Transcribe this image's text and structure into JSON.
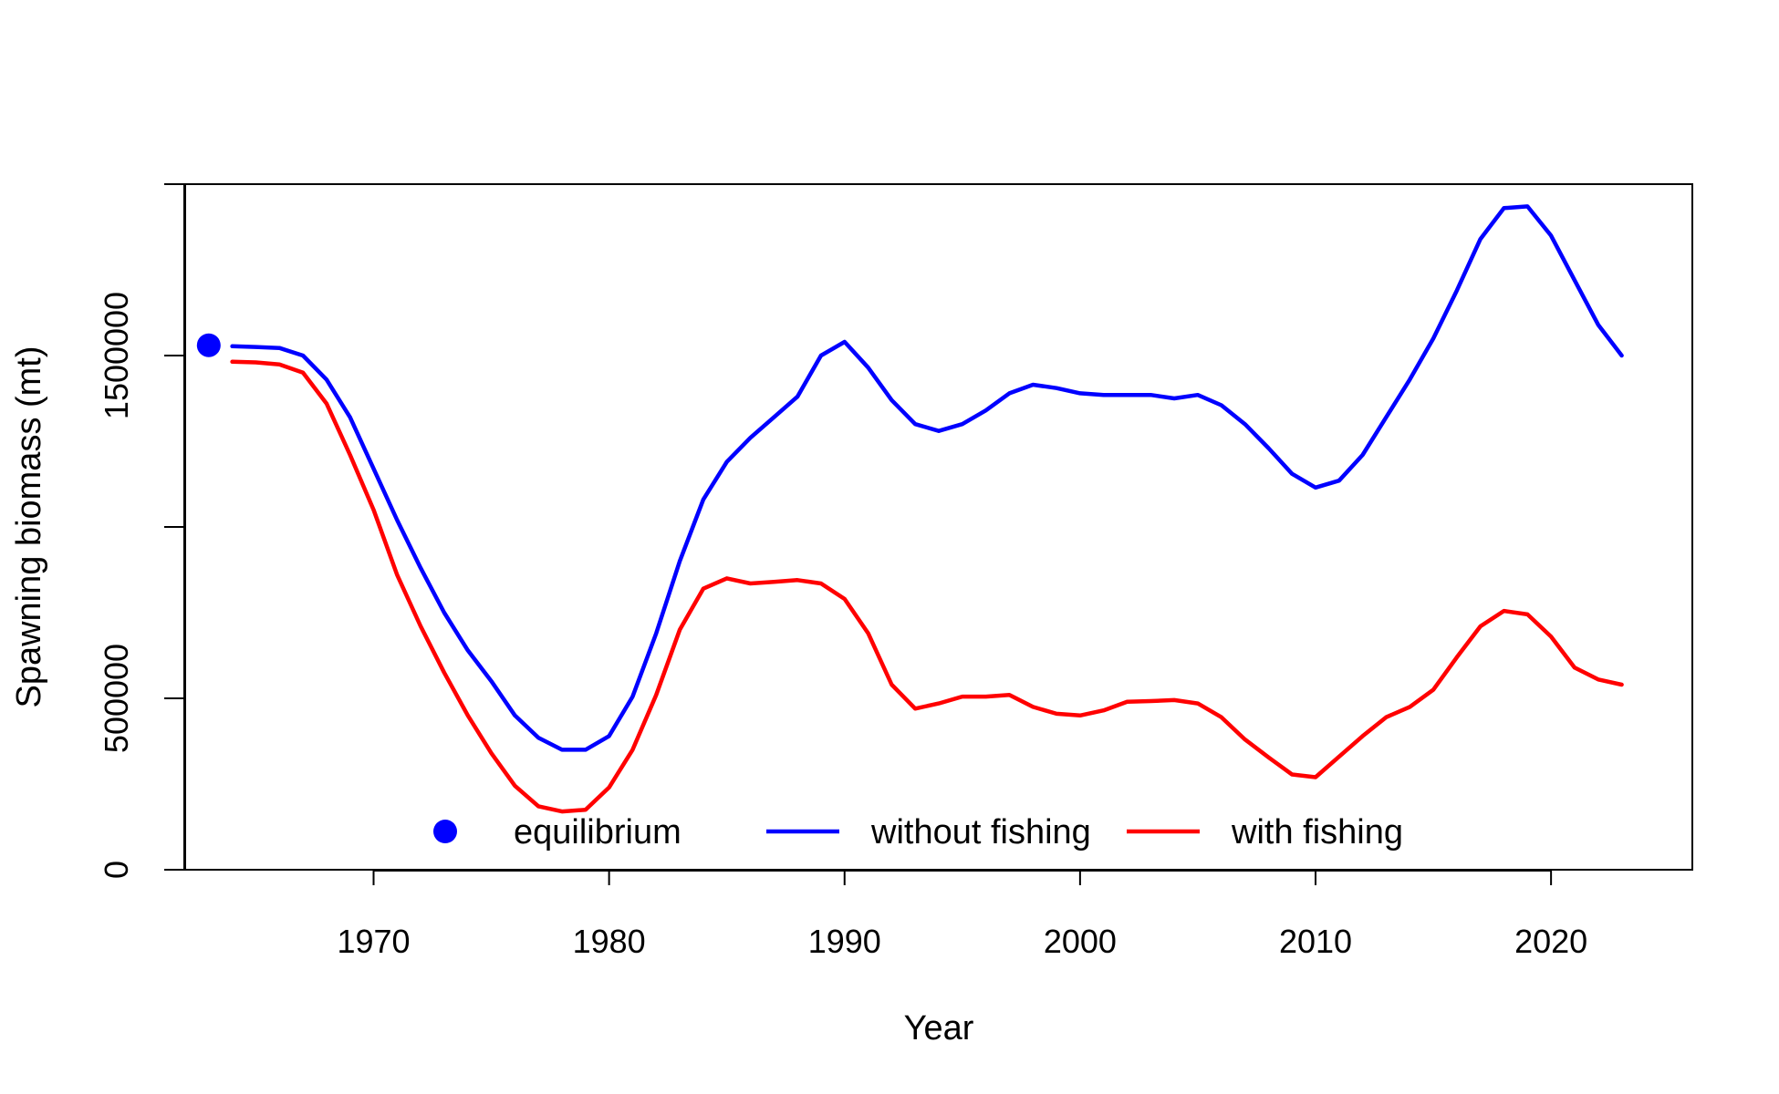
{
  "chart_data": {
    "type": "line",
    "title": "",
    "xlabel": "Year",
    "ylabel": "Spawning biomass (mt)",
    "xlim": [
      1962,
      2026
    ],
    "ylim": [
      0,
      2000000
    ],
    "x_ticks": [
      1970,
      1980,
      1990,
      2000,
      2010,
      2020
    ],
    "y_ticks": [
      0,
      500000,
      1000000,
      1500000,
      2000000
    ],
    "y_tick_labels": [
      "0",
      "500000",
      "",
      "1500000",
      ""
    ],
    "grid": false,
    "legend_position": "bottom",
    "legend": [
      {
        "label": "equilibrium",
        "kind": "point",
        "color": "#0000ff"
      },
      {
        "label": "without fishing",
        "kind": "line",
        "color": "#0000ff"
      },
      {
        "label": "with fishing",
        "kind": "line",
        "color": "#ff0000"
      }
    ],
    "equilibrium": {
      "x": 1963,
      "y": 1530000
    },
    "x": [
      1964,
      1965,
      1966,
      1967,
      1968,
      1969,
      1970,
      1971,
      1972,
      1973,
      1974,
      1975,
      1976,
      1977,
      1978,
      1979,
      1980,
      1981,
      1982,
      1983,
      1984,
      1985,
      1986,
      1987,
      1988,
      1989,
      1990,
      1991,
      1992,
      1993,
      1994,
      1995,
      1996,
      1997,
      1998,
      1999,
      2000,
      2001,
      2002,
      2003,
      2004,
      2005,
      2006,
      2007,
      2008,
      2009,
      2010,
      2011,
      2012,
      2013,
      2014,
      2015,
      2016,
      2017,
      2018,
      2019,
      2020,
      2021,
      2022,
      2023
    ],
    "series": [
      {
        "name": "without fishing",
        "color": "#0000ff",
        "values": [
          1527000,
          1525000,
          1522000,
          1500000,
          1430000,
          1320000,
          1170000,
          1020000,
          880000,
          750000,
          640000,
          550000,
          450000,
          385000,
          350000,
          350000,
          390000,
          505000,
          690000,
          900000,
          1080000,
          1190000,
          1260000,
          1320000,
          1380000,
          1500000,
          1540000,
          1465000,
          1370000,
          1300000,
          1280000,
          1300000,
          1340000,
          1390000,
          1415000,
          1405000,
          1390000,
          1385000,
          1385000,
          1385000,
          1375000,
          1385000,
          1355000,
          1300000,
          1230000,
          1155000,
          1115000,
          1135000,
          1210000,
          1320000,
          1430000,
          1550000,
          1690000,
          1840000,
          1930000,
          1935000,
          1850000,
          1720000,
          1590000,
          1500000
        ]
      },
      {
        "name": "with fishing",
        "color": "#ff0000",
        "values": [
          1482000,
          1480000,
          1474000,
          1450000,
          1360000,
          1210000,
          1050000,
          860000,
          710000,
          575000,
          450000,
          340000,
          245000,
          185000,
          170000,
          175000,
          240000,
          350000,
          510000,
          700000,
          820000,
          850000,
          835000,
          840000,
          845000,
          835000,
          790000,
          690000,
          540000,
          470000,
          485000,
          505000,
          505000,
          510000,
          475000,
          455000,
          450000,
          465000,
          490000,
          492000,
          495000,
          485000,
          445000,
          380000,
          328000,
          278000,
          270000,
          330000,
          390000,
          445000,
          475000,
          525000,
          620000,
          710000,
          755000,
          745000,
          680000,
          590000,
          555000,
          540000
        ]
      }
    ]
  }
}
